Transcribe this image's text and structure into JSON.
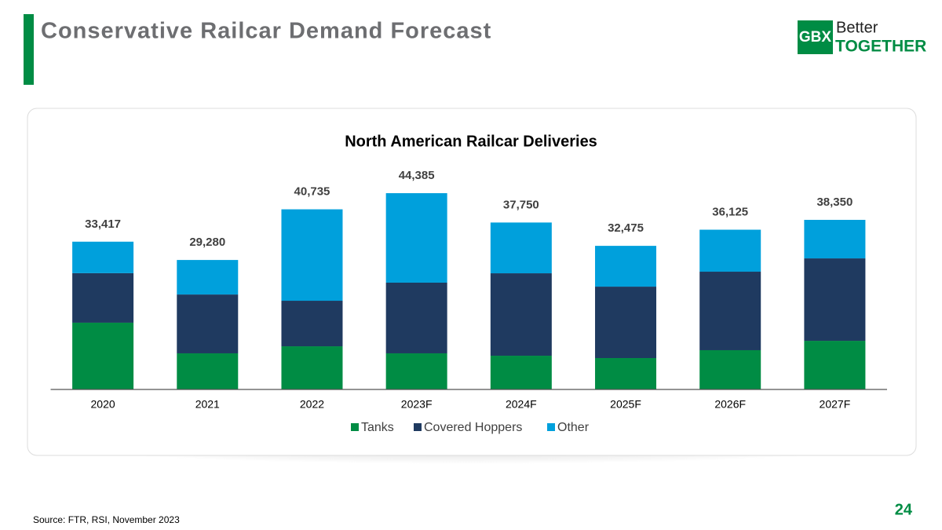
{
  "slide": {
    "title": "Conservative Railcar Demand Forecast",
    "source": "Source: FTR, RSI, November 2023",
    "page_number": "24",
    "logo": {
      "mark": "GBX",
      "line1": "Better",
      "line2": "TOGETHER"
    }
  },
  "chart_data": {
    "type": "stacked_bar",
    "title": "North American Railcar Deliveries",
    "categories": [
      "2020",
      "2021",
      "2022",
      "2023F",
      "2024F",
      "2025F",
      "2026F",
      "2027F"
    ],
    "series": [
      {
        "name": "Tanks",
        "color": "#008c44",
        "values": [
          15100,
          8170,
          9760,
          8170,
          7630,
          7100,
          8880,
          11000
        ]
      },
      {
        "name": "Covered Hoppers",
        "color": "#1f3a60",
        "values": [
          11200,
          13300,
          10300,
          15980,
          18640,
          16150,
          17750,
          18640
        ]
      },
      {
        "name": "Other",
        "color": "#00a0dc",
        "values": [
          7117,
          7810,
          20675,
          20235,
          11480,
          9225,
          9495,
          8710
        ]
      }
    ],
    "totals": {
      "values": [
        33417,
        29280,
        40735,
        44385,
        37750,
        32475,
        36125,
        38350
      ],
      "value_labels": [
        "33,417",
        "29,280",
        "40,735",
        "44,385",
        "37,750",
        "32,475",
        "36,125",
        "38,350"
      ]
    },
    "ylim": [
      0,
      50000
    ],
    "legend": "bottom"
  }
}
